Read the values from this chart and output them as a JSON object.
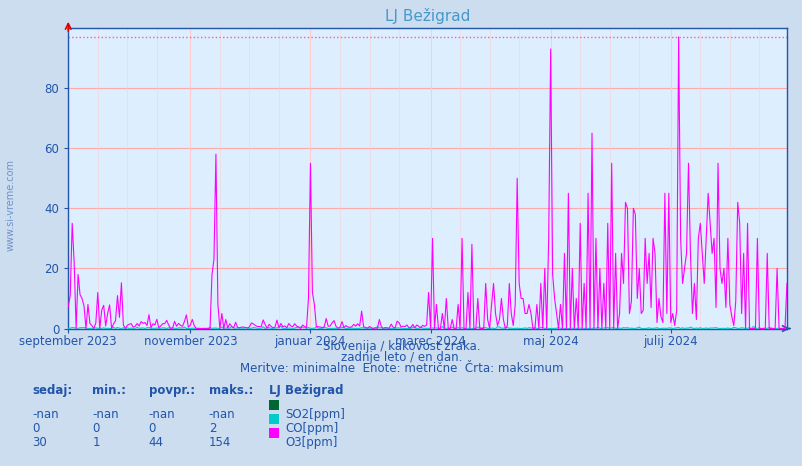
{
  "title": "LJ Bežigrad",
  "subtitle1": "Slovenija / kakovost zraka.",
  "subtitle2": "zadnje leto / en dan.",
  "subtitle3": "Meritve: minimalne  Enote: metrične  Črta: maksimum",
  "background_color": "#ccddf0",
  "plot_bg_color": "#ddeeff",
  "title_color": "#4499cc",
  "text_color": "#2255aa",
  "ylim": [
    0,
    100
  ],
  "yticks": [
    0,
    20,
    40,
    60,
    80
  ],
  "max_line_value": 97,
  "grid_h_color": "#ffaaaa",
  "grid_v_color": "#ffcccc",
  "so2_color": "#006633",
  "co_color": "#00cccc",
  "o3_color": "#ff00ff",
  "legend_title": "LJ Bežigrad",
  "legend_items": [
    {
      "label": "SO2[ppm]",
      "color": "#006633"
    },
    {
      "label": "CO[ppm]",
      "color": "#00cccc"
    },
    {
      "label": "O3[ppm]",
      "color": "#ff00ff"
    }
  ],
  "table_headers": [
    "sedaj:",
    "min.:",
    "povpr.:",
    "maks.:"
  ],
  "table_rows": [
    [
      "-nan",
      "-nan",
      "-nan",
      "-nan"
    ],
    [
      "0",
      "0",
      "0",
      "2"
    ],
    [
      "30",
      "1",
      "44",
      "154"
    ]
  ],
  "x_tick_labels": [
    "september 2023",
    "november 2023",
    "januar 2024",
    "marec 2024",
    "maj 2024",
    "julij 2024"
  ],
  "x_tick_positions": [
    0,
    62,
    123,
    184,
    245,
    306
  ],
  "n_points": 366,
  "watermark": "www.si-vreme.com"
}
